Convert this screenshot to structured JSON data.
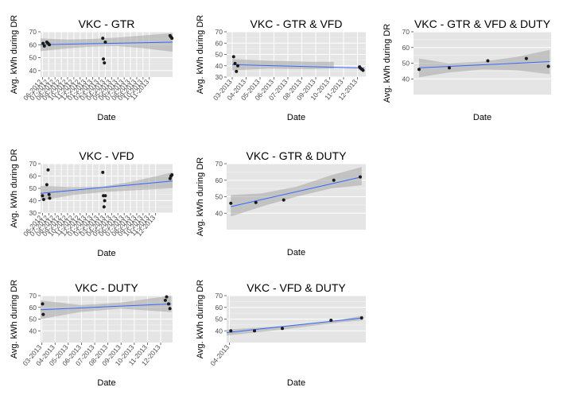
{
  "colors": {
    "panel_bg": "#e5e5e5",
    "grid": "#ffffff",
    "fit_line": "#3366ff",
    "ci_band": "#a6a6a6",
    "point": "#1a1a1a"
  },
  "chart_data": [
    {
      "type": "scatter",
      "title": "VKC -   GTR",
      "xlabel": "Date",
      "ylabel": "Avg. kWh during DR",
      "ylim": [
        35,
        70
      ],
      "yticks": [
        40,
        50,
        60,
        70
      ],
      "xlim": [
        0,
        21
      ],
      "xticks": [
        "06-2012",
        "07-2012",
        "08-2012",
        "09-2012",
        "10-2012",
        "11-2012",
        "12-2012",
        "01-2013",
        "02-2013",
        "03-2013",
        "04-2013",
        "05-2013",
        "06-2013",
        "07-2013",
        "08-2013",
        "09-2013",
        "10-2013",
        "11-2013"
      ],
      "xtick_pos": [
        0.3,
        1.3,
        2.3,
        3.3,
        4.3,
        5.3,
        6.3,
        7.3,
        8.3,
        9.3,
        10.3,
        11.3,
        12.3,
        13.3,
        14.3,
        15.3,
        16.3,
        17.3
      ],
      "points": [
        [
          0.4,
          61
        ],
        [
          0.6,
          59
        ],
        [
          1.0,
          62
        ],
        [
          1.2,
          61
        ],
        [
          1.4,
          60
        ],
        [
          9.9,
          65
        ],
        [
          10.0,
          49
        ],
        [
          10.15,
          46
        ],
        [
          10.3,
          62
        ],
        [
          20.6,
          67
        ],
        [
          20.75,
          66
        ],
        [
          20.9,
          65
        ]
      ],
      "fit": [
        [
          0.0,
          60
        ],
        [
          21.0,
          62
        ]
      ],
      "ci_lower": [
        [
          0.0,
          55
        ],
        [
          4,
          57
        ],
        [
          8,
          58.5
        ],
        [
          12,
          59
        ],
        [
          16,
          57.5
        ],
        [
          21,
          54.5
        ]
      ],
      "ci_upper": [
        [
          0.0,
          65
        ],
        [
          4,
          64
        ],
        [
          8,
          64.5
        ],
        [
          12,
          65.5
        ],
        [
          16,
          67
        ],
        [
          21,
          69
        ]
      ],
      "grid": true,
      "legend": "none"
    },
    {
      "type": "scatter",
      "title": "VKC -   GTR & VFD",
      "xlabel": "Date",
      "ylabel": "Avg. kWh during DR",
      "ylim": [
        30,
        70
      ],
      "yticks": [
        30,
        40,
        50,
        60,
        70
      ],
      "xlim": [
        0,
        10
      ],
      "xticks": [
        "03-2013",
        "04-2013",
        "05-2013",
        "06-2013",
        "07-2013",
        "08-2013",
        "09-2013",
        "10-2013",
        "11-2013",
        "12-2013"
      ],
      "xtick_pos": [
        0.4,
        1.4,
        2.4,
        3.4,
        4.4,
        5.4,
        6.4,
        7.4,
        8.4,
        9.4
      ],
      "points": [
        [
          0.5,
          48
        ],
        [
          0.6,
          42
        ],
        [
          0.7,
          35
        ],
        [
          0.8,
          40
        ],
        [
          9.55,
          39
        ],
        [
          9.6,
          38
        ],
        [
          9.7,
          37
        ],
        [
          9.8,
          36
        ]
      ],
      "fit": [
        [
          0.4,
          41
        ],
        [
          9.9,
          38
        ]
      ],
      "ci_lower": [
        [
          0.4,
          36
        ],
        [
          3,
          37.5
        ],
        [
          6,
          37
        ],
        [
          7.7,
          37.5
        ]
      ],
      "ci_upper": [
        [
          0.4,
          46
        ],
        [
          3,
          44.5
        ],
        [
          6,
          43.5
        ],
        [
          7.7,
          43.5
        ]
      ],
      "grid": true,
      "legend": "none"
    },
    {
      "type": "scatter",
      "title": "VKC -   GTR & VFD & DUTY",
      "xlabel": "Date",
      "ylabel": "Avg. kWh during DR",
      "ylim": [
        30,
        70
      ],
      "yticks": [
        40,
        50,
        60,
        70
      ],
      "xlim": [
        0,
        10
      ],
      "xticks": [],
      "xtick_pos": [],
      "points": [
        [
          0.4,
          46
        ],
        [
          2.6,
          47
        ],
        [
          5.4,
          51.5
        ],
        [
          8.2,
          53
        ],
        [
          9.8,
          48
        ]
      ],
      "fit": [
        [
          0.4,
          47
        ],
        [
          9.9,
          51
        ]
      ],
      "ci_lower": [
        [
          0.4,
          41
        ],
        [
          2.5,
          44
        ],
        [
          5,
          46
        ],
        [
          7.5,
          45.5
        ],
        [
          9.9,
          43
        ]
      ],
      "ci_upper": [
        [
          0.4,
          53
        ],
        [
          2.5,
          50
        ],
        [
          5,
          51
        ],
        [
          7.5,
          54
        ],
        [
          9.9,
          58.5
        ]
      ],
      "grid": true,
      "legend": "none"
    },
    {
      "type": "scatter",
      "title": "VKC -   VFD",
      "xlabel": "Date",
      "ylabel": "Avg. kWh during DR",
      "ylim": [
        30,
        70
      ],
      "yticks": [
        30,
        40,
        50,
        60,
        70
      ],
      "xlim": [
        0,
        21
      ],
      "xticks": [
        "06-2012",
        "07-2012",
        "08-2012",
        "09-2012",
        "10-2012",
        "11-2012",
        "12-2012",
        "01-2013",
        "02-2013",
        "03-2013",
        "04-2013",
        "05-2013",
        "06-2013",
        "07-2013",
        "08-2013",
        "09-2013",
        "10-2013",
        "11-2013",
        "12-2013"
      ],
      "xtick_pos": [
        0.3,
        1.3,
        2.3,
        3.3,
        4.3,
        5.3,
        6.3,
        7.3,
        8.3,
        9.3,
        10.3,
        11.3,
        12.3,
        13.3,
        14.3,
        15.3,
        16.3,
        17.3,
        18.3
      ],
      "points": [
        [
          0.3,
          44
        ],
        [
          0.5,
          41
        ],
        [
          1.0,
          53
        ],
        [
          1.2,
          65
        ],
        [
          1.35,
          45
        ],
        [
          1.45,
          42
        ],
        [
          9.9,
          63
        ],
        [
          10.0,
          44
        ],
        [
          10.1,
          35
        ],
        [
          10.2,
          40
        ],
        [
          10.3,
          44
        ],
        [
          20.6,
          58
        ],
        [
          20.75,
          60
        ],
        [
          20.9,
          61
        ]
      ],
      "fit": [
        [
          0.0,
          46
        ],
        [
          21.0,
          56
        ]
      ],
      "ci_lower": [
        [
          0.0,
          40
        ],
        [
          5,
          44.5
        ],
        [
          10,
          47
        ],
        [
          15,
          48.5
        ],
        [
          21,
          50
        ]
      ],
      "ci_upper": [
        [
          0.0,
          52
        ],
        [
          5,
          51
        ],
        [
          10,
          51.5
        ],
        [
          15,
          56
        ],
        [
          21,
          63
        ]
      ],
      "grid": true,
      "legend": "none"
    },
    {
      "type": "scatter",
      "title": "VKC -   GTR & DUTY",
      "xlabel": "Date",
      "ylabel": "Avg. kWh during DR",
      "ylim": [
        30,
        70
      ],
      "yticks": [
        40,
        50,
        60,
        70
      ],
      "xlim": [
        0,
        10
      ],
      "xticks": [],
      "xtick_pos": [],
      "points": [
        [
          0.3,
          46
        ],
        [
          2.1,
          46.5
        ],
        [
          4.1,
          48
        ],
        [
          7.7,
          60
        ],
        [
          9.6,
          62
        ]
      ],
      "fit": [
        [
          0.3,
          44
        ],
        [
          9.7,
          62
        ]
      ],
      "ci_lower": [
        [
          0.3,
          38
        ],
        [
          2.5,
          44
        ],
        [
          5,
          50
        ],
        [
          7.5,
          55
        ],
        [
          9.7,
          57
        ]
      ],
      "ci_upper": [
        [
          0.3,
          51
        ],
        [
          2.5,
          52
        ],
        [
          5,
          56
        ],
        [
          7.5,
          63
        ],
        [
          9.7,
          68
        ]
      ],
      "grid": true,
      "legend": "none"
    },
    {
      "type": "scatter",
      "title": "VKC -   DUTY",
      "xlabel": "Date",
      "ylabel": "Avg. kWh during DR",
      "ylim": [
        30,
        70
      ],
      "yticks": [
        40,
        50,
        60,
        70
      ],
      "xlim": [
        0,
        10
      ],
      "xticks": [
        "03-2013",
        "04-2013",
        "05-2013",
        "06-2013",
        "07-2013",
        "08-2013",
        "09-2013",
        "10-2013",
        "11-2013",
        "12-2013"
      ],
      "xtick_pos": [
        0.1,
        1.1,
        2.1,
        3.1,
        4.1,
        5.1,
        6.1,
        7.1,
        8.1,
        9.1
      ],
      "points": [
        [
          0.15,
          63
        ],
        [
          0.2,
          54
        ],
        [
          9.45,
          66
        ],
        [
          9.55,
          69
        ],
        [
          9.7,
          63
        ],
        [
          9.8,
          59
        ]
      ],
      "fit": [
        [
          0.0,
          58
        ],
        [
          9.9,
          63
        ]
      ],
      "ci_lower": [
        [
          0.0,
          50
        ],
        [
          3,
          56
        ],
        [
          6,
          59
        ],
        [
          9.9,
          56
        ]
      ],
      "ci_upper": [
        [
          0.0,
          66
        ],
        [
          3,
          62
        ],
        [
          6,
          64
        ],
        [
          9.9,
          70
        ]
      ],
      "grid": true,
      "legend": "none"
    },
    {
      "type": "scatter",
      "title": "VKC -   VFD & DUTY",
      "xlabel": "Date",
      "ylabel": "Avg. kWh during DR",
      "ylim": [
        30,
        70
      ],
      "yticks": [
        40,
        50,
        60,
        70
      ],
      "xlim": [
        0,
        10
      ],
      "xticks": [
        "04-2013"
      ],
      "xtick_pos": [
        0.2
      ],
      "points": [
        [
          0.3,
          40
        ],
        [
          2.0,
          40
        ],
        [
          4.0,
          42
        ],
        [
          7.5,
          49
        ],
        [
          9.7,
          51
        ]
      ],
      "fit": [
        [
          0.0,
          38.5
        ],
        [
          9.8,
          51
        ]
      ],
      "ci_lower": [
        [
          0.0,
          36
        ],
        [
          4,
          41
        ],
        [
          8,
          47
        ],
        [
          9.8,
          49
        ]
      ],
      "ci_upper": [
        [
          0.0,
          41
        ],
        [
          4,
          44
        ],
        [
          8,
          49
        ],
        [
          9.8,
          53
        ]
      ],
      "grid": true,
      "legend": "none"
    }
  ]
}
